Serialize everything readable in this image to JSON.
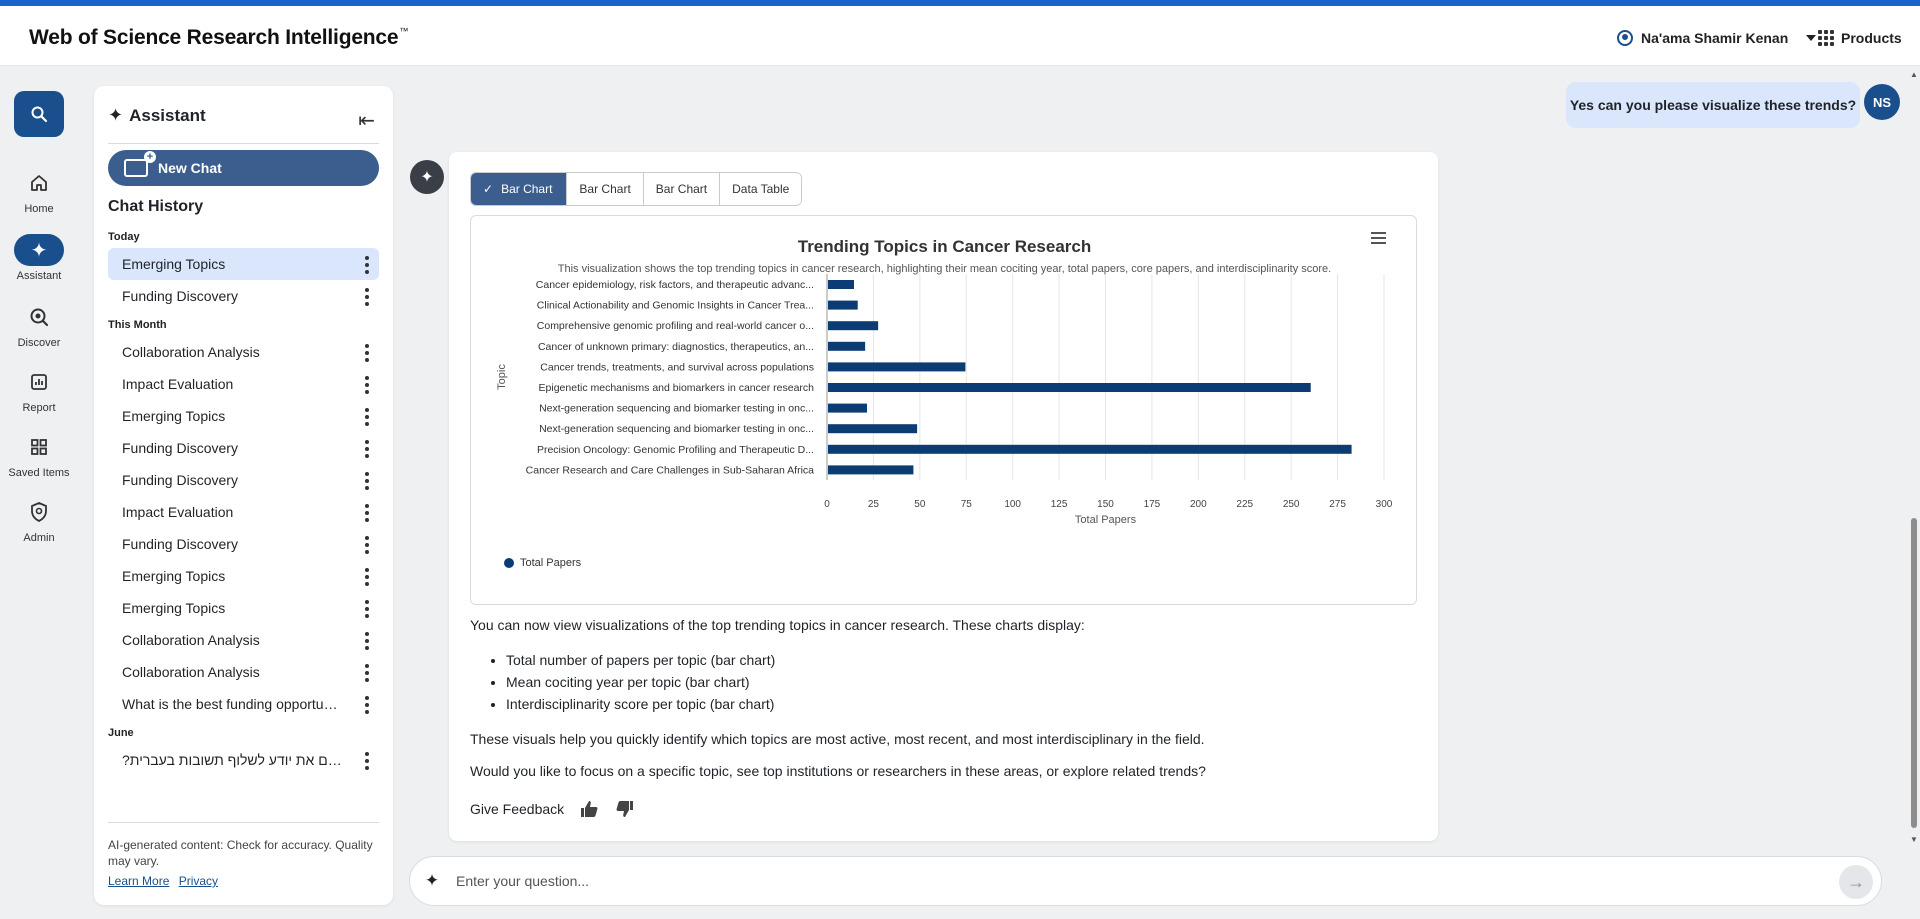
{
  "header": {
    "brand": "Web of Science Research Intelligence",
    "brand_tm": "™",
    "user_name": "Na'ama Shamir Kenan",
    "products_label": "Products"
  },
  "rail": {
    "items": [
      {
        "label": "Home",
        "icon": "home-icon"
      },
      {
        "label": "Assistant",
        "icon": "sparkle-icon"
      },
      {
        "label": "Discover",
        "icon": "discover-icon"
      },
      {
        "label": "Report",
        "icon": "report-icon"
      },
      {
        "label": "Saved Items",
        "icon": "grid-icon"
      },
      {
        "label": "Admin",
        "icon": "admin-icon"
      }
    ]
  },
  "sidebar": {
    "title": "Assistant",
    "new_chat": "New Chat",
    "history_title": "Chat History",
    "groups": [
      {
        "label": "Today",
        "items": [
          "Emerging Topics",
          "Funding Discovery"
        ]
      },
      {
        "label": "This Month",
        "items": [
          "Collaboration Analysis",
          "Impact Evaluation",
          "Emerging Topics",
          "Funding Discovery",
          "Funding Discovery",
          "Impact Evaluation",
          "Funding Discovery",
          "Emerging Topics",
          "Emerging Topics",
          "Collaboration Analysis",
          "Collaboration Analysis",
          "What is the best funding opportun..."
        ]
      },
      {
        "label": "June",
        "items": [
          "?האם את יודע לשלוף תשובות בעברית"
        ]
      }
    ],
    "footer_text": "AI-generated content: Check for accuracy. Quality may vary.",
    "learn_more": "Learn More",
    "privacy": "Privacy"
  },
  "conversation": {
    "user_message": "Yes can you please visualize these trends?",
    "user_initials": "NS",
    "tabs": [
      "Bar Chart",
      "Bar Chart",
      "Bar Chart",
      "Data Table"
    ],
    "response_intro": "You can now view visualizations of the top trending topics in cancer research. These charts display:",
    "response_bullets": [
      "Total number of papers per topic (bar chart)",
      "Mean cociting year per topic (bar chart)",
      "Interdisciplinarity score per topic (bar chart)"
    ],
    "response_p2": "These visuals help you quickly identify which topics are most active, most recent, and most interdisciplinary in the field.",
    "response_p3": "Would you like to focus on a specific topic, see top institutions or researchers in these areas, or explore related trends?",
    "feedback_label": "Give Feedback"
  },
  "input": {
    "placeholder": "Enter your question..."
  },
  "colors": {
    "accent": "#1a4f8e",
    "bar": "#0b3c74",
    "tab_active": "#3b5e8f",
    "selected_bg": "#d9e6fb"
  },
  "chart_data": {
    "type": "bar",
    "orientation": "horizontal",
    "title": "Trending Topics in Cancer Research",
    "subtitle": "This visualization shows the top trending topics in cancer research, highlighting their mean cociting year, total papers, core papers, and interdisciplinarity score.",
    "xlabel": "Total Papers",
    "ylabel": "Topic",
    "xlim": [
      0,
      300
    ],
    "xticks": [
      0,
      25,
      50,
      75,
      100,
      125,
      150,
      175,
      200,
      225,
      250,
      275,
      300
    ],
    "categories": [
      "Cancer epidemiology, risk factors, and therapeutic advanc...",
      "Clinical Actionability and Genomic Insights in Cancer Trea...",
      "Comprehensive genomic profiling and real-world cancer o...",
      "Cancer of unknown primary: diagnostics, therapeutics, an...",
      "Cancer trends, treatments, and survival across populations",
      "Epigenetic mechanisms and biomarkers in cancer research",
      "Next-generation sequencing and biomarker testing in onc...",
      "Next-generation sequencing and biomarker testing in onc...",
      "Precision Oncology: Genomic Profiling and Therapeutic D...",
      "Cancer Research and Care Challenges in Sub-Saharan Africa"
    ],
    "series": [
      {
        "name": "Total Papers",
        "values": [
          14,
          16,
          27,
          20,
          74,
          260,
          21,
          48,
          282,
          46
        ]
      }
    ],
    "grid": true,
    "legend": "bottom-left"
  }
}
